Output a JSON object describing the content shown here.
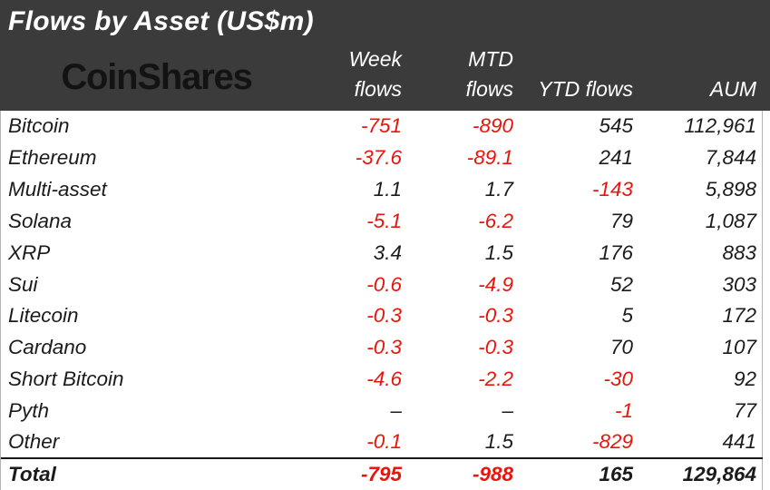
{
  "colors": {
    "header_bg": "#3b3b3b",
    "negative": "#e8150b",
    "body_text": "#1b1b1b",
    "logo_color": "#131313",
    "header_text": "#ffffff"
  },
  "chart_data": {
    "type": "table",
    "title": "Flows by Asset (US$m)",
    "brand": "CoinShares",
    "column_headers": {
      "asset": [
        ""
      ],
      "week": [
        "Week",
        "flows"
      ],
      "mtd": [
        "MTD",
        "flows"
      ],
      "ytd": [
        "YTD flows"
      ],
      "aum": [
        "AUM"
      ]
    },
    "rows": [
      {
        "asset": "Bitcoin",
        "week": "-751",
        "mtd": "-890",
        "ytd": "545",
        "aum": "112,961"
      },
      {
        "asset": "Ethereum",
        "week": "-37.6",
        "mtd": "-89.1",
        "ytd": "241",
        "aum": "7,844"
      },
      {
        "asset": "Multi-asset",
        "week": "1.1",
        "mtd": "1.7",
        "ytd": "-143",
        "aum": "5,898"
      },
      {
        "asset": "Solana",
        "week": "-5.1",
        "mtd": "-6.2",
        "ytd": "79",
        "aum": "1,087"
      },
      {
        "asset": "XRP",
        "week": "3.4",
        "mtd": "1.5",
        "ytd": "176",
        "aum": "883"
      },
      {
        "asset": "Sui",
        "week": "-0.6",
        "mtd": "-4.9",
        "ytd": "52",
        "aum": "303"
      },
      {
        "asset": "Litecoin",
        "week": "-0.3",
        "mtd": "-0.3",
        "ytd": "5",
        "aum": "172"
      },
      {
        "asset": "Cardano",
        "week": "-0.3",
        "mtd": "-0.3",
        "ytd": "70",
        "aum": "107"
      },
      {
        "asset": "Short Bitcoin",
        "week": "-4.6",
        "mtd": "-2.2",
        "ytd": "-30",
        "aum": "92"
      },
      {
        "asset": "Pyth",
        "week": "–",
        "mtd": "–",
        "ytd": "-1",
        "aum": "77"
      },
      {
        "asset": "Other",
        "week": "-0.1",
        "mtd": "1.5",
        "ytd": "-829",
        "aum": "441"
      }
    ],
    "total": {
      "asset": "Total",
      "week": "-795",
      "mtd": "-988",
      "ytd": "165",
      "aum": "129,864"
    }
  }
}
